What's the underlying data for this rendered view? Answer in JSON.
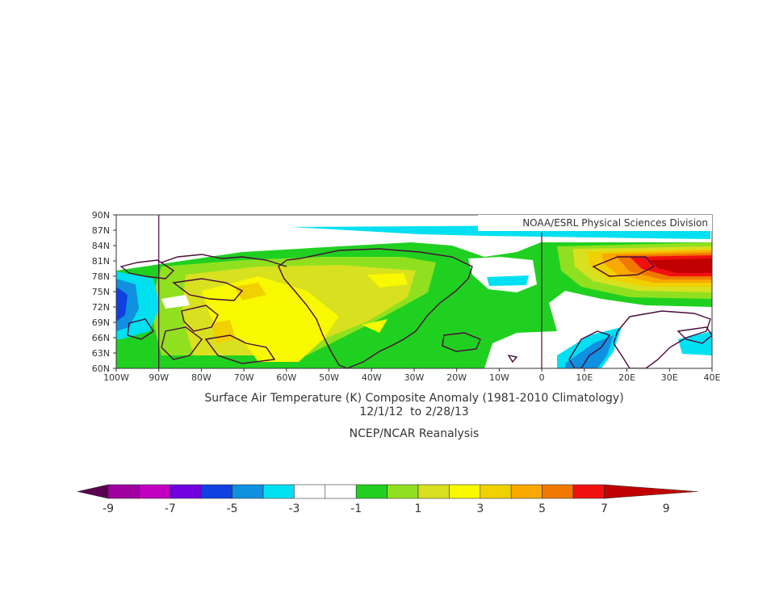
{
  "credit": "NOAA/ESRL Physical Sciences Division",
  "title_line1": "Surface Air Temperature (K) Composite Anomaly (1981-2010 Climatology)",
  "title_line2": "12/1/12  to 2/28/13",
  "source": "NCEP/NCAR Reanalysis",
  "lat_labels": [
    "90N",
    "87N",
    "84N",
    "81N",
    "78N",
    "75N",
    "72N",
    "69N",
    "66N",
    "63N",
    "60N"
  ],
  "lon_labels": [
    "100W",
    "90W",
    "80W",
    "70W",
    "60W",
    "50W",
    "40W",
    "30W",
    "20W",
    "10W",
    "0",
    "10E",
    "20E",
    "30E",
    "40E"
  ],
  "colorbar": {
    "labels": [
      "-9",
      "-7",
      "-5",
      "-3",
      "-1",
      "1",
      "3",
      "5",
      "7",
      "9"
    ],
    "low_arrow_color": "#5a0050",
    "high_arrow_color": "#c00000",
    "colors": [
      "#5a0050",
      "#a000a0",
      "#c000c0",
      "#7000e0",
      "#1040e0",
      "#1090e0",
      "#00e0f0",
      "#ffffff",
      "#ffffff",
      "#20d020",
      "#90e020",
      "#d8e020",
      "#f8f800",
      "#f0d000",
      "#f8a800",
      "#f07800",
      "#f01010"
    ]
  },
  "palette": {
    "cyan": "#00e0f0",
    "lightblue": "#1090e0",
    "blue": "#1040e0",
    "green": "#20d020",
    "yellowgreen": "#90e020",
    "olive": "#d8e020",
    "yellow": "#f8f800",
    "gold": "#f0d000",
    "orange": "#f8a800",
    "darkorange": "#f07800",
    "red": "#f01010",
    "darkred": "#c00000",
    "coast": "#4a0a3a"
  }
}
